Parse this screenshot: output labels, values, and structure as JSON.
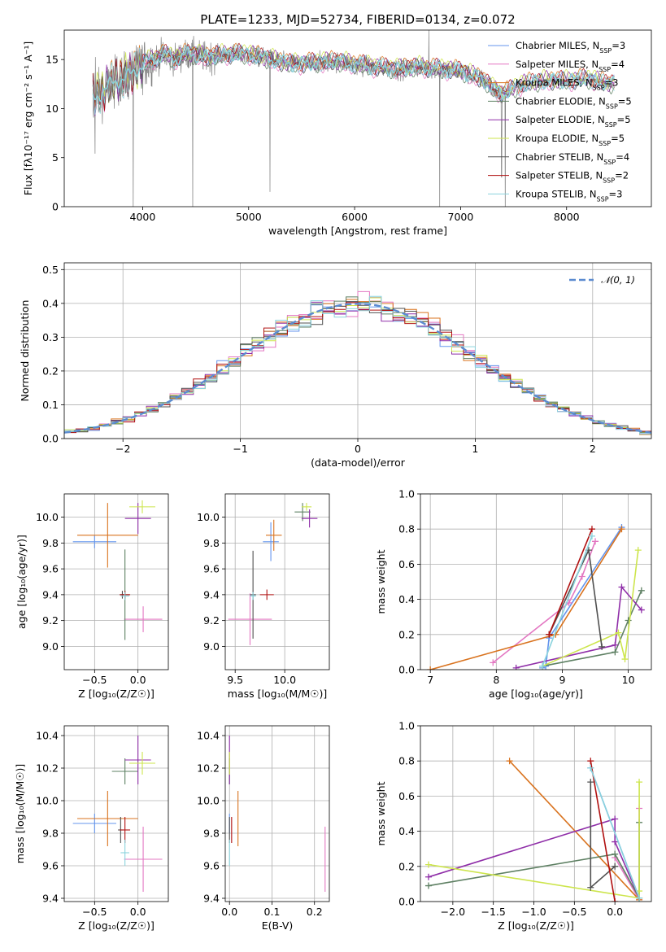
{
  "title": "PLATE=1233, MJD=52734, FIBERID=0134, z=0.072",
  "colors": [
    "#6495ed",
    "#e377c2",
    "#d9731f",
    "#5e8063",
    "#8f2ea8",
    "#cde54d",
    "#505050",
    "#b01010",
    "#8ad3dd"
  ],
  "spectrum_gray": "#808080",
  "chart_data": [
    {
      "id": "spectrum",
      "type": "line",
      "title": "PLATE=1233, MJD=52734, FIBERID=0134, z=0.072",
      "xlabel": "wavelength [Angstrom, rest frame]",
      "ylabel": "Flux [fλ10⁻¹⁷ erg cm⁻² s⁻¹ A⁻¹]",
      "xlim": [
        3260,
        8800
      ],
      "ylim": [
        0,
        18
      ],
      "xticks": [
        4000,
        5000,
        6000,
        7000,
        8000
      ],
      "yticks": [
        0,
        5,
        10,
        15
      ],
      "grid": false,
      "legend_position": "top-right",
      "continuum": {
        "x": [
          3530,
          3600,
          3700,
          3800,
          3900,
          4000,
          4100,
          4200,
          4300,
          4400,
          4500,
          4600,
          4800,
          5000,
          5200,
          5400,
          5600,
          5800,
          6000,
          6200,
          6400,
          6600,
          6800,
          7000,
          7200,
          7300,
          7400,
          7600,
          7800,
          8000,
          8200,
          8400,
          8450
        ],
        "y": [
          11.0,
          11.5,
          12.5,
          13.0,
          13.5,
          14.5,
          15.0,
          15.5,
          15.0,
          15.5,
          15.5,
          15.2,
          15.5,
          15.5,
          15.0,
          14.5,
          14.6,
          14.8,
          14.5,
          14.2,
          14.0,
          14.2,
          14.0,
          13.8,
          13.0,
          12.0,
          11.5,
          12.5,
          12.8,
          12.8,
          13.0,
          12.5,
          12.5
        ]
      },
      "series": [
        {
          "name": "Chabrier MILES, N_SSP=3"
        },
        {
          "name": "Salpeter MILES, N_SSP=4"
        },
        {
          "name": "Kroupa MILES, N_SSP=3"
        },
        {
          "name": "Chabrier ELODIE, N_SSP=5"
        },
        {
          "name": "Salpeter ELODIE, N_SSP=5"
        },
        {
          "name": "Kroupa ELODIE, N_SSP=5"
        },
        {
          "name": "Chabrier STELIB, N_SSP=4"
        },
        {
          "name": "Salpeter STELIB, N_SSP=2"
        },
        {
          "name": "Kroupa STELIB, N_SSP=3"
        }
      ]
    },
    {
      "id": "residuals",
      "type": "line",
      "xlabel": "(data-model)/error",
      "ylabel": "Normed distribution",
      "xlim": [
        -2.5,
        2.5
      ],
      "ylim": [
        0,
        0.52
      ],
      "xticks": [
        -2,
        -1,
        0,
        1,
        2
      ],
      "yticks": [
        0.0,
        0.1,
        0.2,
        0.3,
        0.4,
        0.5
      ],
      "grid": true,
      "legend_position": "top-right",
      "reference": {
        "name": "𝒩(0, 1)",
        "mean": 0,
        "sigma": 1
      },
      "bin_width": 0.1
    },
    {
      "id": "age_vs_Z",
      "type": "scatter",
      "xlabel": "Z [log₁₀(Z/Z☉)]",
      "ylabel": "age  [log₁₀(age/yr)]",
      "xlim": [
        -0.85,
        0.35
      ],
      "ylim": [
        8.82,
        10.18
      ],
      "xticks": [
        -0.5,
        0.0
      ],
      "yticks": [
        9.0,
        9.2,
        9.4,
        9.6,
        9.8,
        10.0
      ],
      "grid": true,
      "points": [
        {
          "x": -0.5,
          "y": 9.81,
          "xerr": 0.25,
          "yerr": 0.05
        },
        {
          "x": 0.06,
          "y": 9.21,
          "xerr": 0.22,
          "yerr": 0.1
        },
        {
          "x": -0.35,
          "y": 9.86,
          "xerr": 0.35,
          "yerr": 0.25
        },
        {
          "x": -0.15,
          "y": 9.4,
          "xerr": 0.05,
          "yerr": 0.35
        },
        {
          "x": 0.0,
          "y": 9.99,
          "xerr": 0.15,
          "yerr": 0.12
        },
        {
          "x": 0.05,
          "y": 10.08,
          "xerr": 0.15,
          "yerr": 0.05
        },
        {
          "x": -0.18,
          "y": 9.4,
          "xerr": 0.03,
          "yerr": 0.03
        },
        {
          "x": -0.15,
          "y": 9.4,
          "xerr": 0.06,
          "yerr": 0.03
        },
        {
          "x": -0.15,
          "y": 9.39,
          "xerr": 0.05,
          "yerr": 0.03
        }
      ]
    },
    {
      "id": "age_vs_mass",
      "type": "scatter",
      "xlabel": "mass [log₁₀(M/M☉)]",
      "ylabel": "",
      "xlim": [
        9.4,
        10.45
      ],
      "ylim": [
        8.82,
        10.18
      ],
      "xticks": [
        9.5,
        10.0
      ],
      "yticks": [
        9.0,
        9.2,
        9.4,
        9.6,
        9.8,
        10.0
      ],
      "grid": true,
      "points": [
        {
          "x": 9.86,
          "y": 9.81,
          "xerr": 0.08,
          "yerr": 0.15
        },
        {
          "x": 9.65,
          "y": 9.21,
          "xerr": 0.22,
          "yerr": 0.2
        },
        {
          "x": 9.89,
          "y": 9.86,
          "xerr": 0.08,
          "yerr": 0.12
        },
        {
          "x": 10.18,
          "y": 10.04,
          "xerr": 0.08,
          "yerr": 0.07
        },
        {
          "x": 10.25,
          "y": 9.99,
          "xerr": 0.08,
          "yerr": 0.07
        },
        {
          "x": 10.22,
          "y": 10.08,
          "xerr": 0.05,
          "yerr": 0.03
        },
        {
          "x": 9.68,
          "y": 9.4,
          "xerr": 0.03,
          "yerr": 0.34
        },
        {
          "x": 9.82,
          "y": 9.4,
          "xerr": 0.07,
          "yerr": 0.04
        },
        {
          "x": 9.68,
          "y": 9.39,
          "xerr": 0.03,
          "yerr": 0.03
        }
      ]
    },
    {
      "id": "massweight_vs_age",
      "type": "line",
      "xlabel": "age  [log₁₀(age/yr)]",
      "ylabel": "mass weight",
      "xlim": [
        6.85,
        10.35
      ],
      "ylim": [
        0,
        1.0
      ],
      "xticks": [
        7,
        8,
        9,
        10
      ],
      "yticks": [
        0.0,
        0.2,
        0.4,
        0.6,
        0.8,
        1.0
      ],
      "grid": true,
      "series": [
        {
          "x": [
            8.7,
            8.75,
            8.8,
            9.9
          ],
          "y": [
            0.01,
            0.02,
            0.18,
            0.81
          ]
        },
        {
          "x": [
            7.95,
            9.1,
            9.3,
            9.5
          ],
          "y": [
            0.04,
            0.38,
            0.53,
            0.73
          ]
        },
        {
          "x": [
            7.0,
            8.9,
            9.9
          ],
          "y": [
            0.0,
            0.2,
            0.8
          ]
        },
        {
          "x": [
            8.7,
            9.8,
            10.0,
            10.2
          ],
          "y": [
            0.02,
            0.1,
            0.28,
            0.45
          ]
        },
        {
          "x": [
            8.3,
            9.8,
            9.9,
            10.2
          ],
          "y": [
            0.01,
            0.14,
            0.47,
            0.34
          ]
        },
        {
          "x": [
            8.7,
            9.85,
            9.95,
            10.15
          ],
          "y": [
            0.02,
            0.21,
            0.06,
            0.68
          ]
        },
        {
          "x": [
            8.8,
            9.4,
            9.6
          ],
          "y": [
            0.2,
            0.68,
            0.13
          ]
        },
        {
          "x": [
            8.8,
            9.45
          ],
          "y": [
            0.2,
            0.8
          ]
        },
        {
          "x": [
            8.7,
            9.45
          ],
          "y": [
            0.02,
            0.76
          ]
        }
      ]
    },
    {
      "id": "mass_vs_Z",
      "type": "scatter",
      "xlabel": "Z [log₁₀(Z/Z☉)]",
      "ylabel": "mass [log₁₀(M/M☉)]",
      "xlim": [
        -0.85,
        0.35
      ],
      "ylim": [
        9.38,
        10.46
      ],
      "xticks": [
        -0.5,
        0.0
      ],
      "yticks": [
        9.4,
        9.6,
        9.8,
        10.0,
        10.2,
        10.4
      ],
      "grid": true,
      "points": [
        {
          "x": -0.5,
          "y": 9.86,
          "xerr": 0.25,
          "yerr": 0.06
        },
        {
          "x": 0.06,
          "y": 9.64,
          "xerr": 0.22,
          "yerr": 0.2
        },
        {
          "x": -0.35,
          "y": 9.89,
          "xerr": 0.35,
          "yerr": 0.17
        },
        {
          "x": -0.15,
          "y": 10.18,
          "xerr": 0.15,
          "yerr": 0.08
        },
        {
          "x": 0.0,
          "y": 10.25,
          "xerr": 0.15,
          "yerr": 0.15
        },
        {
          "x": 0.05,
          "y": 10.23,
          "xerr": 0.15,
          "yerr": 0.07
        },
        {
          "x": -0.2,
          "y": 9.82,
          "xerr": 0.03,
          "yerr": 0.08
        },
        {
          "x": -0.15,
          "y": 9.82,
          "xerr": 0.06,
          "yerr": 0.08
        },
        {
          "x": -0.15,
          "y": 9.68,
          "xerr": 0.05,
          "yerr": 0.08
        }
      ]
    },
    {
      "id": "mass_vs_EBV",
      "type": "scatter",
      "xlabel": "E(B-V)",
      "ylabel": "",
      "xlim": [
        -0.01,
        0.235
      ],
      "ylim": [
        9.38,
        10.46
      ],
      "xticks": [
        0.0,
        0.1,
        0.2
      ],
      "yticks": [
        9.4,
        9.6,
        9.8,
        10.0,
        10.2,
        10.4
      ],
      "grid": true,
      "points": [
        {
          "x": 0.0,
          "y": 9.86,
          "xerr": 0.0,
          "yerr": 0.06
        },
        {
          "x": 0.225,
          "y": 9.64,
          "xerr": 0.0,
          "yerr": 0.2
        },
        {
          "x": 0.02,
          "y": 9.89,
          "xerr": 0.0,
          "yerr": 0.17
        },
        {
          "x": 0.0,
          "y": 10.18,
          "xerr": 0.0,
          "yerr": 0.08
        },
        {
          "x": 0.0,
          "y": 10.25,
          "xerr": 0.0,
          "yerr": 0.15
        },
        {
          "x": 0.0,
          "y": 10.23,
          "xerr": 0.0,
          "yerr": 0.07
        },
        {
          "x": 0.0,
          "y": 9.82,
          "xerr": 0.0,
          "yerr": 0.08
        },
        {
          "x": 0.005,
          "y": 9.82,
          "xerr": 0.0,
          "yerr": 0.08
        },
        {
          "x": 0.0,
          "y": 9.68,
          "xerr": 0.0,
          "yerr": 0.08
        }
      ]
    },
    {
      "id": "massweight_vs_Z",
      "type": "line",
      "xlabel": "Z [log₁₀(Z/Z☉)]",
      "ylabel": "mass weight",
      "xlim": [
        -2.4,
        0.45
      ],
      "ylim": [
        0,
        1.0
      ],
      "xticks": [
        -2.0,
        -1.5,
        -1.0,
        -0.5,
        0.0
      ],
      "yticks": [
        0.0,
        0.2,
        0.4,
        0.6,
        0.8,
        1.0
      ],
      "grid": true,
      "series": [
        {
          "x": [
            -0.3,
            0.3
          ],
          "y": [
            0.76,
            0.02
          ]
        },
        {
          "x": [
            0.0,
            0.3,
            0.3
          ],
          "y": [
            0.25,
            0.01,
            0.53
          ]
        },
        {
          "x": [
            -1.3,
            0.3
          ],
          "y": [
            0.8,
            0.01
          ]
        },
        {
          "x": [
            -2.3,
            0.0,
            0.3,
            0.3
          ],
          "y": [
            0.09,
            0.27,
            0.02,
            0.45
          ]
        },
        {
          "x": [
            -2.3,
            0.0,
            0.0,
            0.3
          ],
          "y": [
            0.14,
            0.47,
            0.34,
            0.02
          ]
        },
        {
          "x": [
            -2.3,
            0.3,
            0.3,
            0.3
          ],
          "y": [
            0.21,
            0.02,
            0.06,
            0.68
          ]
        },
        {
          "x": [
            -0.3,
            -0.3,
            0.0
          ],
          "y": [
            0.68,
            0.08,
            0.2
          ]
        },
        {
          "x": [
            -0.3,
            0.0
          ],
          "y": [
            0.8,
            0.0
          ]
        },
        {
          "x": [
            -0.3,
            0.3
          ],
          "y": [
            0.76,
            0.02
          ]
        }
      ]
    }
  ]
}
